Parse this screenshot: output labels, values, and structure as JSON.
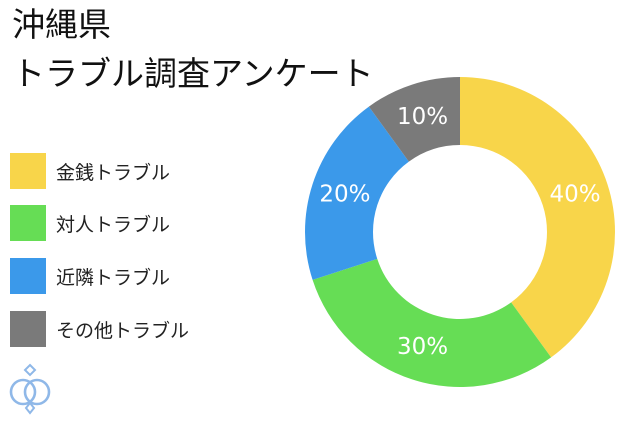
{
  "title": {
    "line1": "沖縄県",
    "line2": "トラブル調査アンケート"
  },
  "chart_data": {
    "type": "pie",
    "style": "donut",
    "legend_position": "left",
    "slices": [
      {
        "name": "金銭トラブル",
        "value": 40,
        "label": "40%",
        "color": "#F8D54A"
      },
      {
        "name": "対人トラブル",
        "value": 30,
        "label": "30%",
        "color": "#66DD55"
      },
      {
        "name": "近隣トラブル",
        "value": 20,
        "label": "20%",
        "color": "#3B99EA"
      },
      {
        "name": "その他トラブル",
        "value": 10,
        "label": "10%",
        "color": "#7A7A7A"
      }
    ]
  },
  "logo": {
    "icon": "linked-rings-logo-icon",
    "color": "#8FB8E8"
  }
}
